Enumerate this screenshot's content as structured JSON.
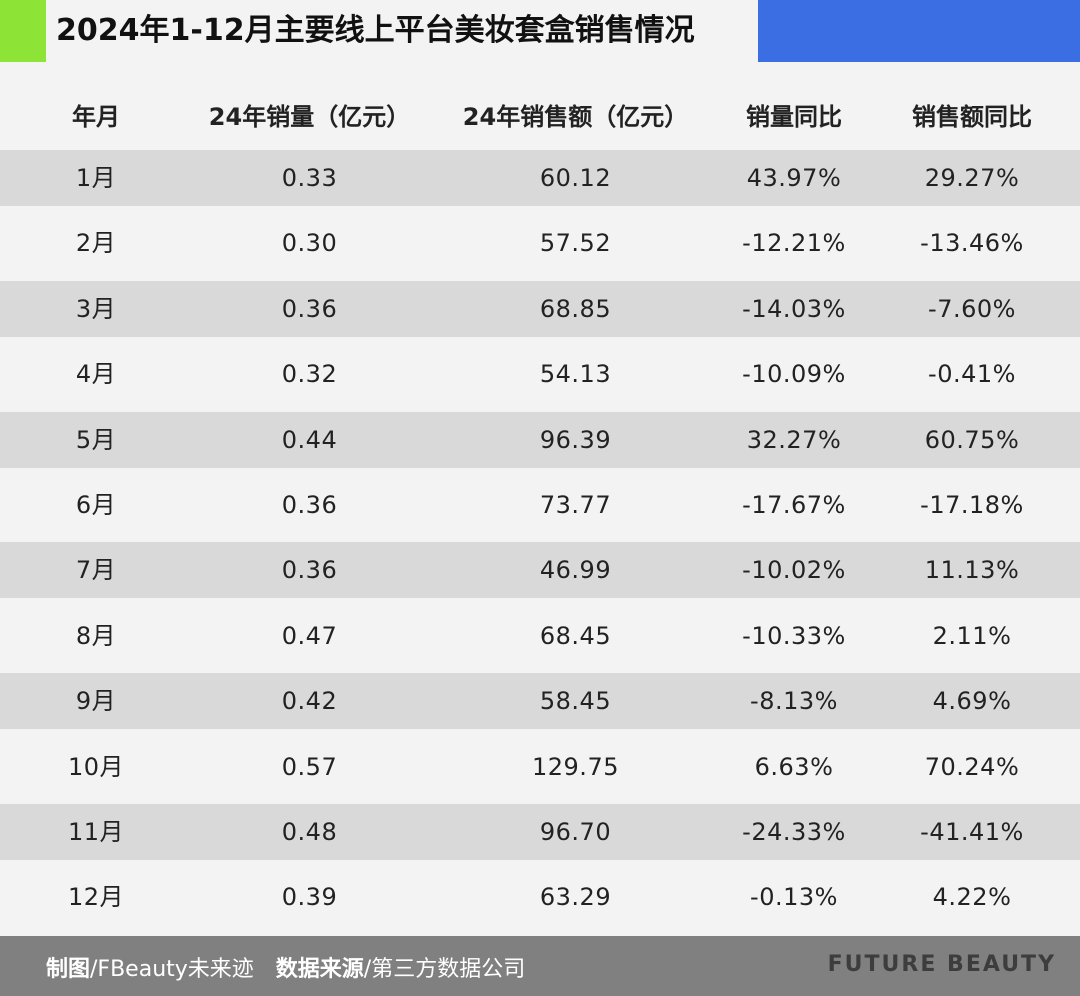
{
  "title": "2024年1-12月主要线上平台美妆套盒销售情况",
  "colors": {
    "accent_green": "#8de336",
    "accent_blue": "#3c6ee3",
    "row_shade": "#d9d9d9",
    "footer_bg": "#808080"
  },
  "table": {
    "headers": [
      "年月",
      "24年销量（亿元）",
      "24年销售额（亿元）",
      "销量同比",
      "销售额同比"
    ],
    "rows": [
      [
        "1月",
        "0.33",
        "60.12",
        "43.97%",
        "29.27%"
      ],
      [
        "2月",
        "0.30",
        "57.52",
        "-12.21%",
        "-13.46%"
      ],
      [
        "3月",
        "0.36",
        "68.85",
        "-14.03%",
        "-7.60%"
      ],
      [
        "4月",
        "0.32",
        "54.13",
        "-10.09%",
        "-0.41%"
      ],
      [
        "5月",
        "0.44",
        "96.39",
        "32.27%",
        "60.75%"
      ],
      [
        "6月",
        "0.36",
        "73.77",
        "-17.67%",
        "-17.18%"
      ],
      [
        "7月",
        "0.36",
        "46.99",
        "-10.02%",
        "11.13%"
      ],
      [
        "8月",
        "0.47",
        "68.45",
        "-10.33%",
        "2.11%"
      ],
      [
        "9月",
        "0.42",
        "58.45",
        "-8.13%",
        "4.69%"
      ],
      [
        "10月",
        "0.57",
        "129.75",
        "6.63%",
        "70.24%"
      ],
      [
        "11月",
        "0.48",
        "96.70",
        "-24.33%",
        "-41.41%"
      ],
      [
        "12月",
        "0.39",
        "63.29",
        "-0.13%",
        "4.22%"
      ]
    ]
  },
  "footer": {
    "chart_label": "制图",
    "chart_value": "/FBeauty未来迹",
    "source_label": "数据来源",
    "source_value": "/第三方数据公司",
    "brand": "FUTURE BEAUTY"
  }
}
